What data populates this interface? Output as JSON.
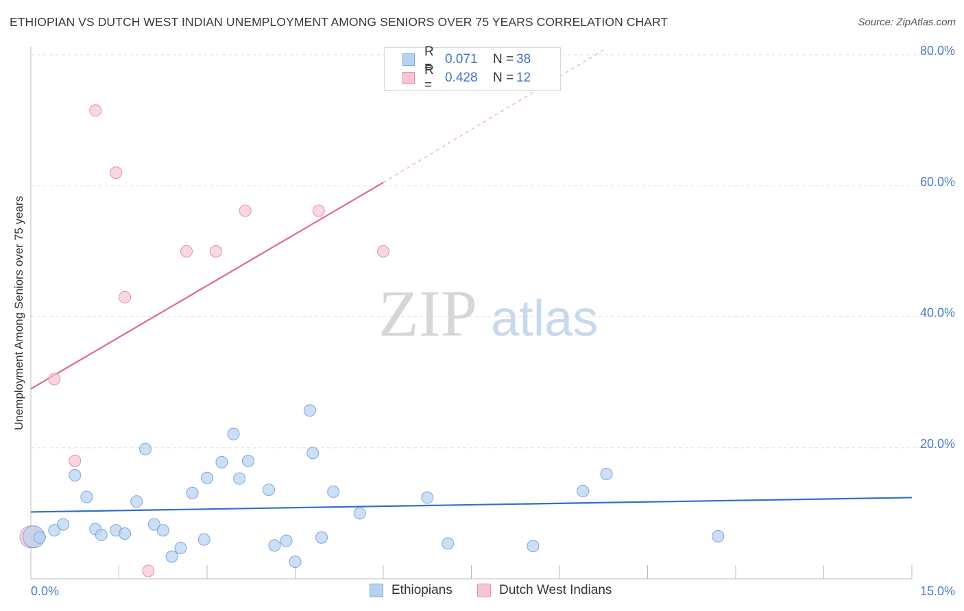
{
  "header": {
    "title": "ETHIOPIAN VS DUTCH WEST INDIAN UNEMPLOYMENT AMONG SENIORS OVER 75 YEARS CORRELATION CHART",
    "source": "Source: ZipAtlas.com"
  },
  "watermark": {
    "zip": "ZIP",
    "atlas": "atlas"
  },
  "legend": {
    "rows": [
      {
        "r_label": "R =",
        "r_value": "0.071",
        "n_label": "N =",
        "n_value": "38"
      },
      {
        "r_label": "R =",
        "r_value": "0.428",
        "n_label": "N =",
        "n_value": "12"
      }
    ]
  },
  "bottom_legend": {
    "ethiopians": "Ethiopians",
    "dutch": "Dutch West Indians"
  },
  "colors": {
    "blue_fill": "#b7d1f0",
    "blue_stroke": "#7aa6dc",
    "blue_line": "#2f6fcd",
    "pink_fill": "#f7c6d4",
    "pink_stroke": "#e58fab",
    "pink_line": "#e0678f",
    "grid": "#dddddd",
    "axis_label": "#4a7cc7"
  },
  "chart_data": {
    "type": "scatter",
    "title": "ETHIOPIAN VS DUTCH WEST INDIAN UNEMPLOYMENT AMONG SENIORS OVER 75 YEARS CORRELATION CHART",
    "xlabel": "",
    "ylabel": "Unemployment Among Seniors over 75 years",
    "xlim": [
      0,
      15
    ],
    "ylim": [
      0,
      80
    ],
    "x_tick_labels": {
      "min": "0.0%",
      "max": "15.0%"
    },
    "y_ticks": [
      20,
      40,
      60,
      80
    ],
    "y_tick_labels": [
      "20.0%",
      "40.0%",
      "60.0%",
      "80.0%"
    ],
    "grid": true,
    "series": [
      {
        "name": "Ethiopians",
        "color": "#b7d1f0",
        "points": [
          [
            0.05,
            6.4
          ],
          [
            0.15,
            6.3
          ],
          [
            0.4,
            7.4
          ],
          [
            0.55,
            8.3
          ],
          [
            0.75,
            15.8
          ],
          [
            0.95,
            12.5
          ],
          [
            1.1,
            7.6
          ],
          [
            1.2,
            6.7
          ],
          [
            1.45,
            7.4
          ],
          [
            1.6,
            6.9
          ],
          [
            1.8,
            11.8
          ],
          [
            1.95,
            19.8
          ],
          [
            2.1,
            8.3
          ],
          [
            2.25,
            7.4
          ],
          [
            2.4,
            3.4
          ],
          [
            2.55,
            4.7
          ],
          [
            2.75,
            13.1
          ],
          [
            2.95,
            6.0
          ],
          [
            3.0,
            15.4
          ],
          [
            3.25,
            17.8
          ],
          [
            3.45,
            22.1
          ],
          [
            3.55,
            15.3
          ],
          [
            3.7,
            18.0
          ],
          [
            4.05,
            13.6
          ],
          [
            4.15,
            5.1
          ],
          [
            4.35,
            5.8
          ],
          [
            4.5,
            2.6
          ],
          [
            4.75,
            25.7
          ],
          [
            4.8,
            19.2
          ],
          [
            4.95,
            6.3
          ],
          [
            5.15,
            13.3
          ],
          [
            5.6,
            10.0
          ],
          [
            6.75,
            12.4
          ],
          [
            7.1,
            5.4
          ],
          [
            8.55,
            5.0
          ],
          [
            9.4,
            13.4
          ],
          [
            9.8,
            16.0
          ],
          [
            11.7,
            6.5
          ]
        ],
        "trend": {
          "x": [
            0,
            15
          ],
          "y": [
            10.2,
            12.4
          ]
        }
      },
      {
        "name": "Dutch West Indians",
        "color": "#f7c6d4",
        "points": [
          [
            0.0,
            6.4
          ],
          [
            0.4,
            30.5
          ],
          [
            0.75,
            18.0
          ],
          [
            1.1,
            71.5
          ],
          [
            1.45,
            62.0
          ],
          [
            1.6,
            43.0
          ],
          [
            2.0,
            1.2
          ],
          [
            2.65,
            50.0
          ],
          [
            3.15,
            50.0
          ],
          [
            3.65,
            56.2
          ],
          [
            4.9,
            56.2
          ],
          [
            6.0,
            50.0
          ]
        ],
        "trend": {
          "x": [
            0,
            6.0
          ],
          "y": [
            29.0,
            60.5
          ]
        },
        "trend_extension": {
          "x": [
            6.0,
            9.8
          ],
          "y": [
            60.5,
            81.0
          ]
        }
      }
    ]
  }
}
